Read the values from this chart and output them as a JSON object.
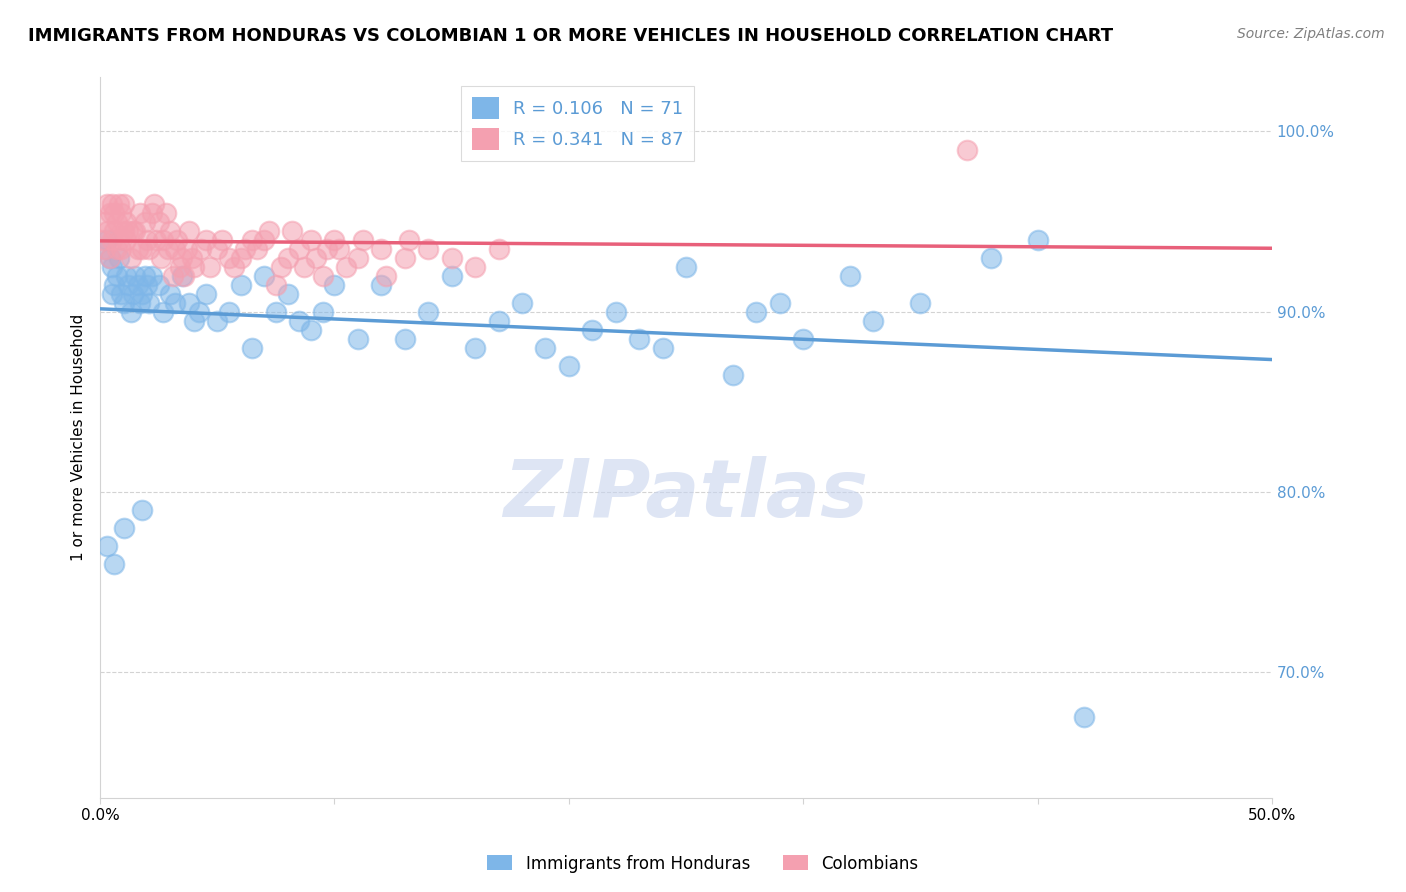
{
  "title": "IMMIGRANTS FROM HONDURAS VS COLOMBIAN 1 OR MORE VEHICLES IN HOUSEHOLD CORRELATION CHART",
  "source": "Source: ZipAtlas.com",
  "ylabel": "1 or more Vehicles in Household",
  "xlim": [
    0.0,
    50.0
  ],
  "ylim": [
    63.0,
    103.0
  ],
  "r_honduras": 0.106,
  "n_honduras": 71,
  "r_colombian": 0.341,
  "n_colombian": 87,
  "color_honduras": "#7EB6E8",
  "color_colombian": "#F4A0B0",
  "color_honduras_line": "#5B9BD5",
  "color_colombian_line": "#E8607A",
  "legend_label_honduras": "Immigrants from Honduras",
  "legend_label_colombian": "Colombians",
  "watermark": "ZIPatlas",
  "watermark_color": "#C8D4EE",
  "honduras_x": [
    0.2,
    0.3,
    0.4,
    0.5,
    0.5,
    0.6,
    0.7,
    0.8,
    0.9,
    1.0,
    1.1,
    1.2,
    1.3,
    1.4,
    1.5,
    1.6,
    1.7,
    1.8,
    1.9,
    2.0,
    2.1,
    2.2,
    2.5,
    2.7,
    3.0,
    3.2,
    3.5,
    3.8,
    4.0,
    4.2,
    4.5,
    5.0,
    5.5,
    6.0,
    6.5,
    7.0,
    7.5,
    8.0,
    8.5,
    9.0,
    9.5,
    10.0,
    11.0,
    12.0,
    13.0,
    14.0,
    15.0,
    16.0,
    17.0,
    18.0,
    19.0,
    20.0,
    21.0,
    22.0,
    23.0,
    24.0,
    25.0,
    27.0,
    28.0,
    29.0,
    30.0,
    32.0,
    33.0,
    35.0,
    38.0,
    40.0,
    42.0,
    0.3,
    0.6,
    1.0,
    1.8
  ],
  "honduras_y": [
    93.5,
    94.0,
    93.0,
    92.5,
    91.0,
    91.5,
    92.0,
    93.0,
    91.0,
    90.5,
    92.0,
    91.5,
    90.0,
    91.0,
    92.0,
    91.5,
    90.5,
    91.0,
    92.0,
    91.5,
    90.5,
    92.0,
    91.5,
    90.0,
    91.0,
    90.5,
    92.0,
    90.5,
    89.5,
    90.0,
    91.0,
    89.5,
    90.0,
    91.5,
    88.0,
    92.0,
    90.0,
    91.0,
    89.5,
    89.0,
    90.0,
    91.5,
    88.5,
    91.5,
    88.5,
    90.0,
    92.0,
    88.0,
    89.5,
    90.5,
    88.0,
    87.0,
    89.0,
    90.0,
    88.5,
    88.0,
    92.5,
    86.5,
    90.0,
    90.5,
    88.5,
    92.0,
    89.5,
    90.5,
    93.0,
    94.0,
    67.5,
    77.0,
    76.0,
    78.0,
    79.0
  ],
  "colombian_x": [
    0.1,
    0.2,
    0.2,
    0.3,
    0.3,
    0.4,
    0.4,
    0.5,
    0.5,
    0.6,
    0.6,
    0.7,
    0.7,
    0.8,
    0.8,
    0.9,
    0.9,
    1.0,
    1.0,
    1.1,
    1.1,
    1.2,
    1.3,
    1.4,
    1.5,
    1.6,
    1.7,
    1.8,
    1.9,
    2.0,
    2.1,
    2.2,
    2.3,
    2.4,
    2.5,
    2.6,
    2.7,
    2.8,
    2.9,
    3.0,
    3.1,
    3.2,
    3.3,
    3.4,
    3.5,
    3.6,
    3.7,
    3.8,
    3.9,
    4.0,
    4.3,
    4.5,
    4.7,
    5.0,
    5.2,
    5.5,
    5.7,
    6.0,
    6.2,
    6.5,
    6.7,
    7.0,
    7.2,
    7.5,
    7.7,
    8.0,
    8.2,
    8.5,
    8.7,
    9.0,
    9.2,
    9.5,
    9.7,
    10.0,
    10.2,
    10.5,
    11.0,
    11.2,
    12.0,
    12.2,
    13.0,
    13.2,
    14.0,
    15.0,
    16.0,
    17.0,
    37.0
  ],
  "colombian_y": [
    94.0,
    93.5,
    95.0,
    94.5,
    96.0,
    93.0,
    95.5,
    94.0,
    96.0,
    94.5,
    95.5,
    93.5,
    95.0,
    94.0,
    96.0,
    93.5,
    95.5,
    94.5,
    96.0,
    94.0,
    95.0,
    94.5,
    93.0,
    94.5,
    94.5,
    93.5,
    95.5,
    93.5,
    95.0,
    94.0,
    93.5,
    95.5,
    96.0,
    94.0,
    95.0,
    93.0,
    94.0,
    95.5,
    93.5,
    94.5,
    92.0,
    93.5,
    94.0,
    92.5,
    93.0,
    92.0,
    93.5,
    94.5,
    93.0,
    92.5,
    93.5,
    94.0,
    92.5,
    93.5,
    94.0,
    93.0,
    92.5,
    93.0,
    93.5,
    94.0,
    93.5,
    94.0,
    94.5,
    91.5,
    92.5,
    93.0,
    94.5,
    93.5,
    92.5,
    94.0,
    93.0,
    92.0,
    93.5,
    94.0,
    93.5,
    92.5,
    93.0,
    94.0,
    93.5,
    92.0,
    93.0,
    94.0,
    93.5,
    93.0,
    92.5,
    93.5,
    99.0
  ]
}
